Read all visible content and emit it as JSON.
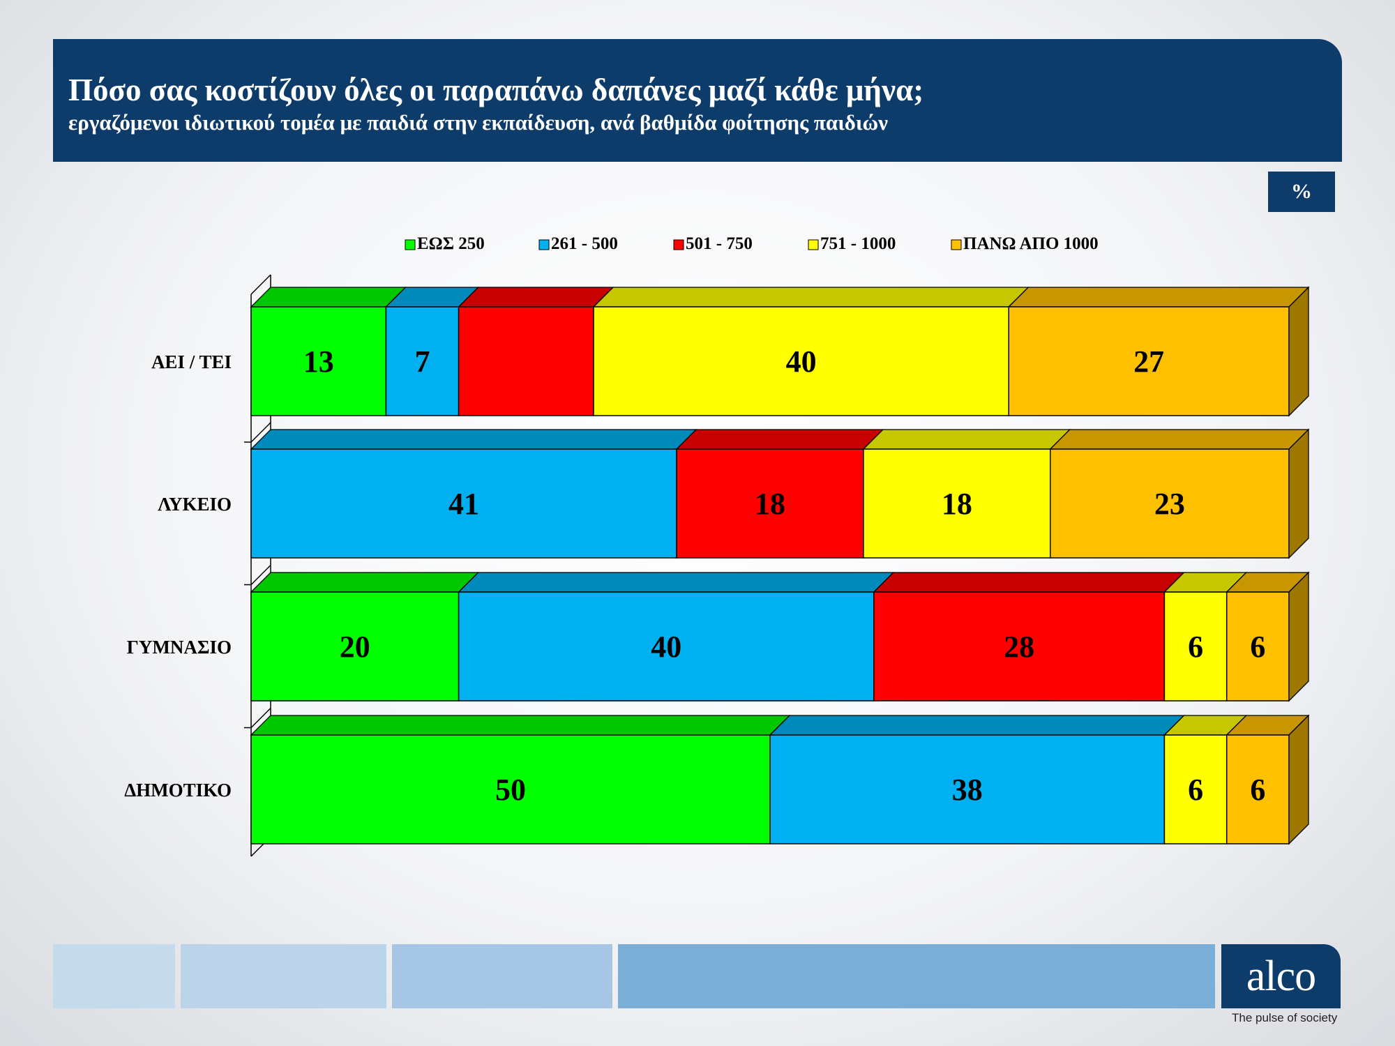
{
  "header": {
    "title": "Πόσο σας κοστίζουν όλες οι παραπάνω δαπάνες μαζί κάθε μήνα;",
    "subtitle": "εργαζόμενοι ιδιωτικού τομέα με παιδιά στην εκπαίδευση, ανά βαθμίδα φοίτησης παιδιών",
    "unit_badge": "%"
  },
  "chart_data": {
    "type": "bar",
    "orientation": "horizontal",
    "stacked": true,
    "title": "Πόσο σας κοστίζουν όλες οι παραπάνω δαπάνες μαζί κάθε μήνα;",
    "subtitle": "εργαζόμενοι ιδιωτικού τομέα με παιδιά στην εκπαίδευση, ανά βαθμίδα φοίτησης παιδιών",
    "unit": "%",
    "xlim": [
      0,
      100
    ],
    "legend_position": "top",
    "categories": [
      "ΑΕΙ / ΤΕΙ",
      "ΛΥΚΕΙΟ",
      "ΓΥΜΝΑΣΙΟ",
      "ΔΗΜΟΤΙΚΟ"
    ],
    "series": [
      {
        "name": "ΕΩΣ 250",
        "color": "#00ff00",
        "values": [
          13,
          0,
          20,
          50
        ]
      },
      {
        "name": "261 - 500",
        "color": "#00b0f0",
        "values": [
          7,
          41,
          40,
          38
        ]
      },
      {
        "name": "501 - 750",
        "color": "#ff0000",
        "values": [
          13,
          18,
          28,
          0
        ]
      },
      {
        "name": "751 - 1000",
        "color": "#ffff00",
        "values": [
          40,
          18,
          6,
          6
        ]
      },
      {
        "name": "ΠΑΝΩ ΑΠΟ 1000",
        "color": "#ffc000",
        "values": [
          27,
          23,
          6,
          6
        ]
      }
    ],
    "value_labels": [
      [
        "13",
        "7",
        "",
        "40",
        "27"
      ],
      [
        "",
        "41",
        "18",
        "18",
        "23"
      ],
      [
        "20",
        "40",
        "28",
        "6",
        "6"
      ],
      [
        "50",
        "38",
        "",
        "6",
        "6"
      ]
    ]
  },
  "footer": {
    "brand_colors": [
      "#c5dbec",
      "#bcd4ea",
      "#a5c6e4",
      "#7baed6"
    ],
    "logo_text": "alco",
    "tagline": "The pulse of society"
  }
}
